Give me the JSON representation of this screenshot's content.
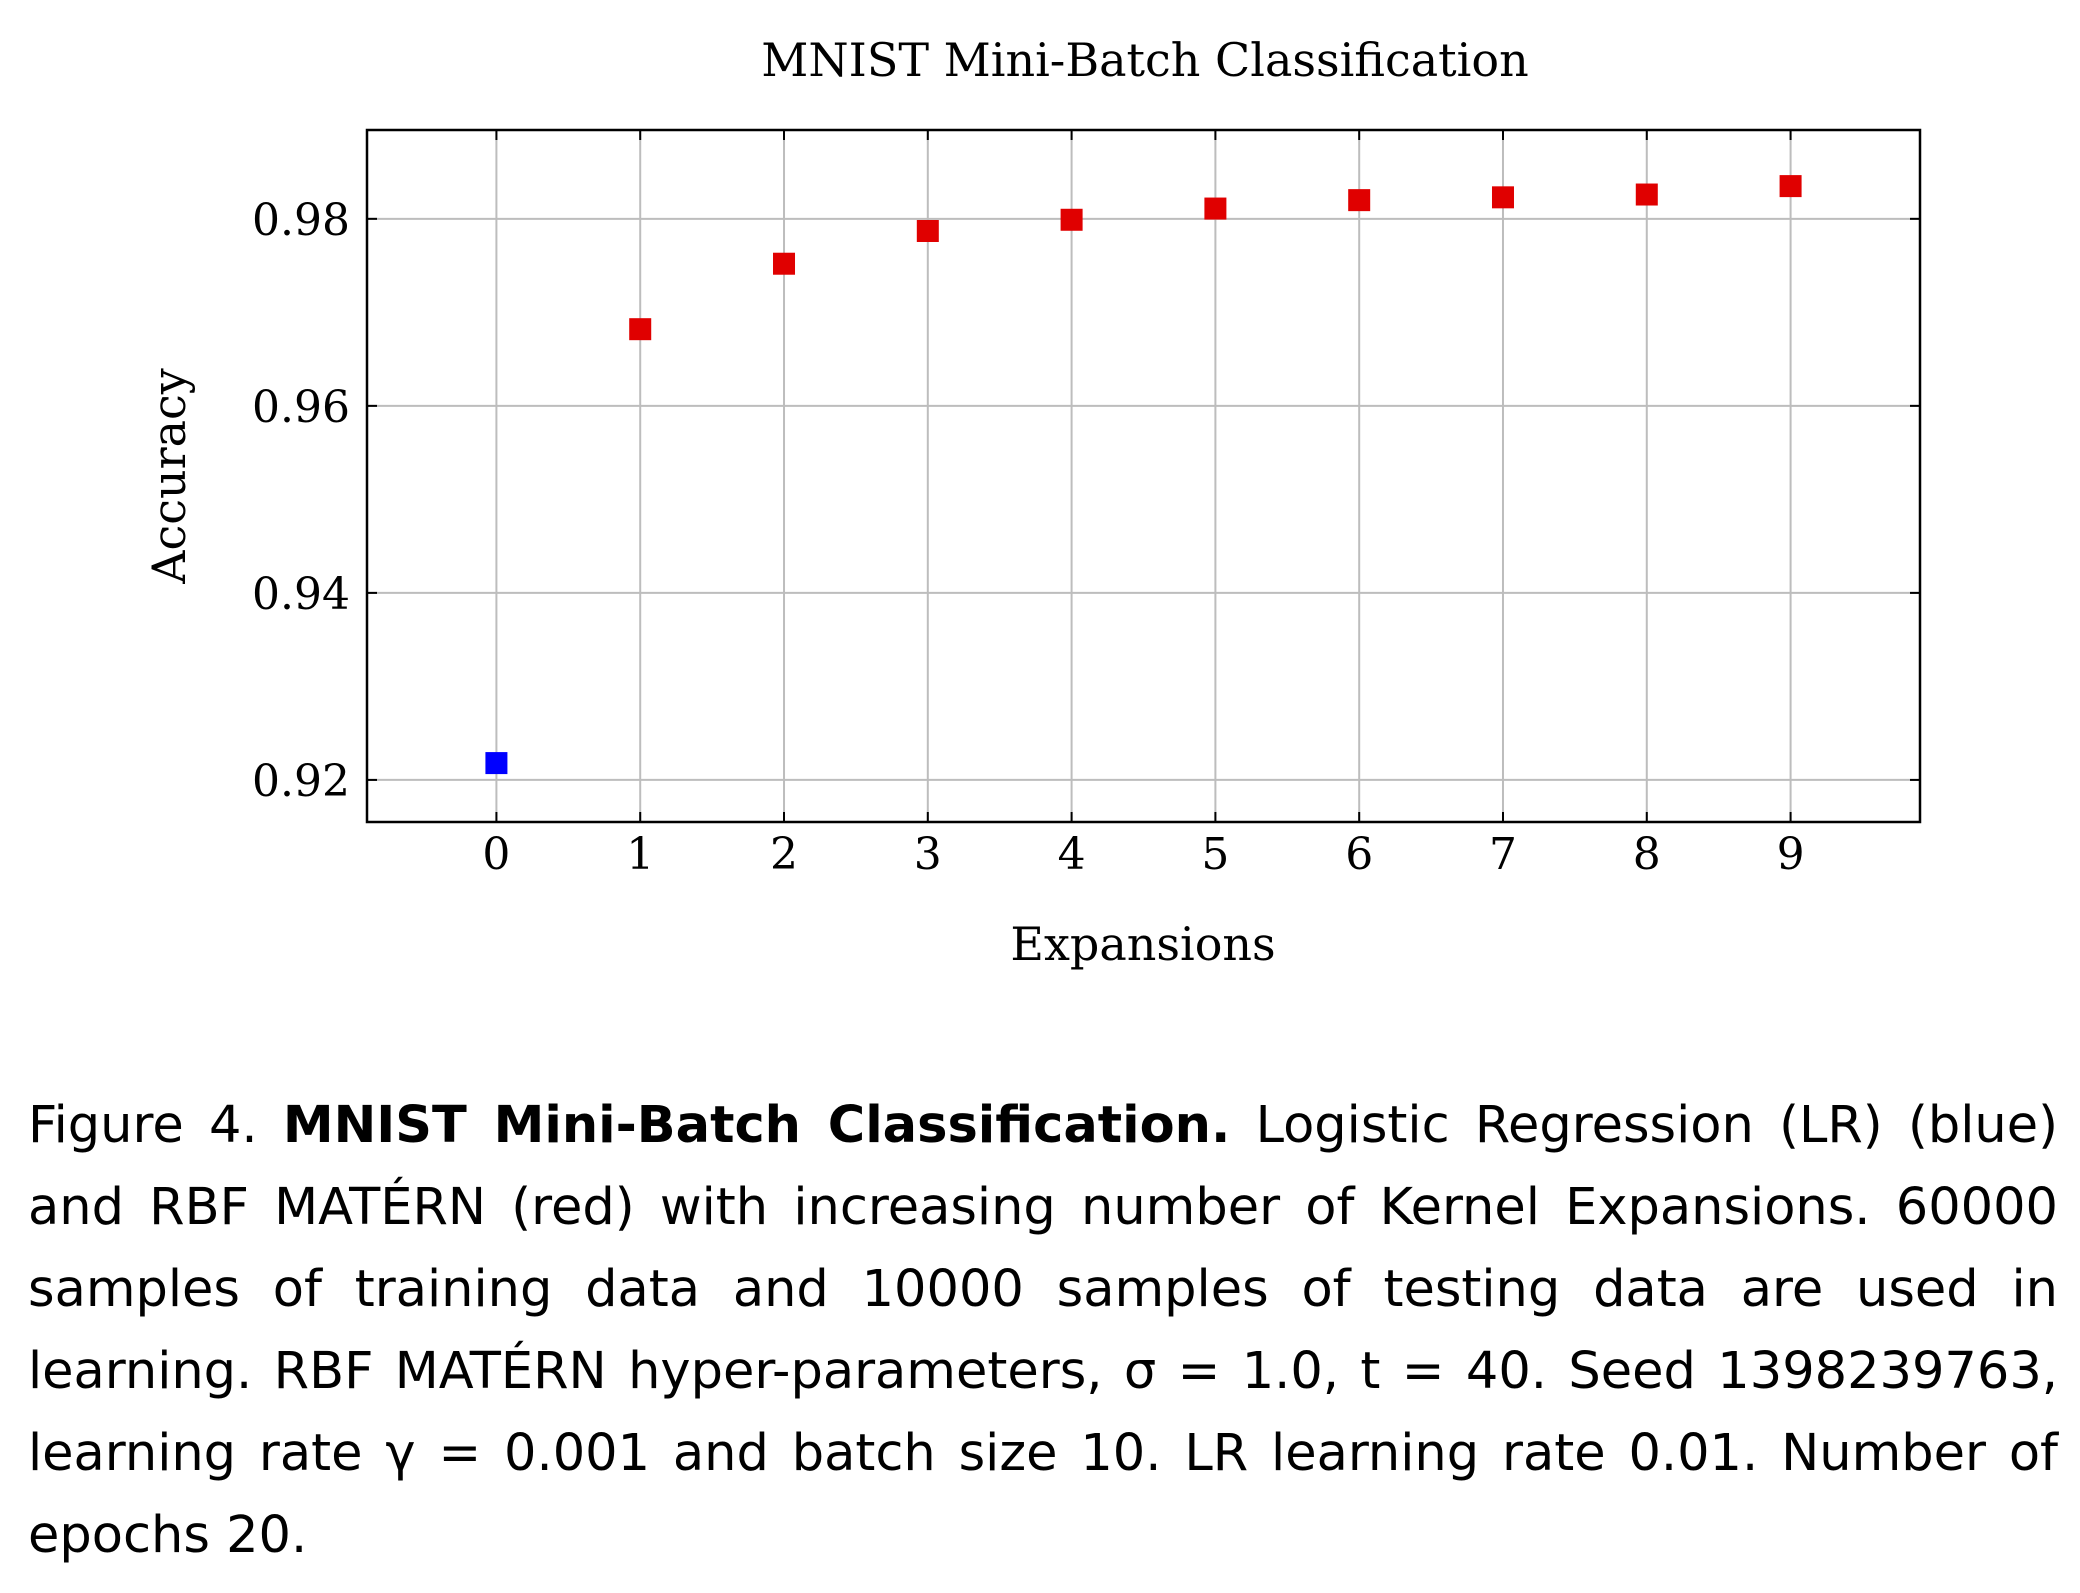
{
  "chart_data": {
    "type": "scatter",
    "title": "MNIST Mini-Batch Classification",
    "xlabel": "Expansions",
    "ylabel": "Accuracy",
    "xlim": [
      -0.9,
      9.9
    ],
    "ylim": [
      0.9155,
      0.9895
    ],
    "x_ticks": [
      "0",
      "1",
      "2",
      "3",
      "4",
      "5",
      "6",
      "7",
      "8",
      "9"
    ],
    "y_ticks": [
      "0.92",
      "0.94",
      "0.96",
      "0.98"
    ],
    "grid": true,
    "marker": "square",
    "series": [
      {
        "color": "#0000ff",
        "x": [
          0
        ],
        "y": [
          0.9218
        ]
      },
      {
        "color": "#e00000",
        "x": [
          1,
          2,
          3,
          4,
          5,
          6,
          7,
          8,
          9
        ],
        "y": [
          0.9682,
          0.9752,
          0.9787,
          0.9799,
          0.9811,
          0.982,
          0.9823,
          0.9826,
          0.9835
        ]
      }
    ]
  },
  "caption": {
    "label": "Figure 4.",
    "title": "MNIST Mini-Batch Classification.",
    "text": "Logistic Regression (LR) (blue) and RBF MATÉRN (red) with increasing number of Kernel Expansions. 60000 samples of training data and 10000 samples of testing data are used in learning. RBF MATÉRN hyper-parameters, σ = 1.0, t = 40. Seed 1398239763, learning rate γ = 0.001 and batch size 10. LR learning rate 0.01. Number of epochs 20."
  }
}
